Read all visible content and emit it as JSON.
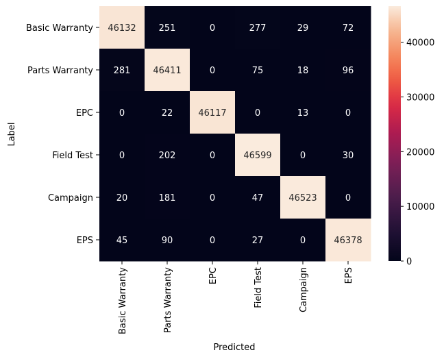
{
  "chart_data": {
    "type": "heatmap",
    "xlabel": "Predicted",
    "ylabel": "Label",
    "x_categories": [
      "Basic Warranty",
      "Parts Warranty",
      "EPC",
      "Field Test",
      "Campaign",
      "EPS"
    ],
    "y_categories": [
      "Basic Warranty",
      "Parts Warranty",
      "EPC",
      "Field Test",
      "Campaign",
      "EPS"
    ],
    "values": [
      [
        46132,
        251,
        0,
        277,
        29,
        72
      ],
      [
        281,
        46411,
        0,
        75,
        18,
        96
      ],
      [
        0,
        22,
        46117,
        0,
        13,
        0
      ],
      [
        0,
        202,
        0,
        46599,
        0,
        30
      ],
      [
        20,
        181,
        0,
        47,
        46523,
        0
      ],
      [
        45,
        90,
        0,
        27,
        0,
        46378
      ]
    ],
    "colorbar": {
      "min": 0,
      "max": 46599,
      "ticks": [
        0,
        10000,
        20000,
        30000,
        40000
      ],
      "colormap": "rocket"
    }
  }
}
